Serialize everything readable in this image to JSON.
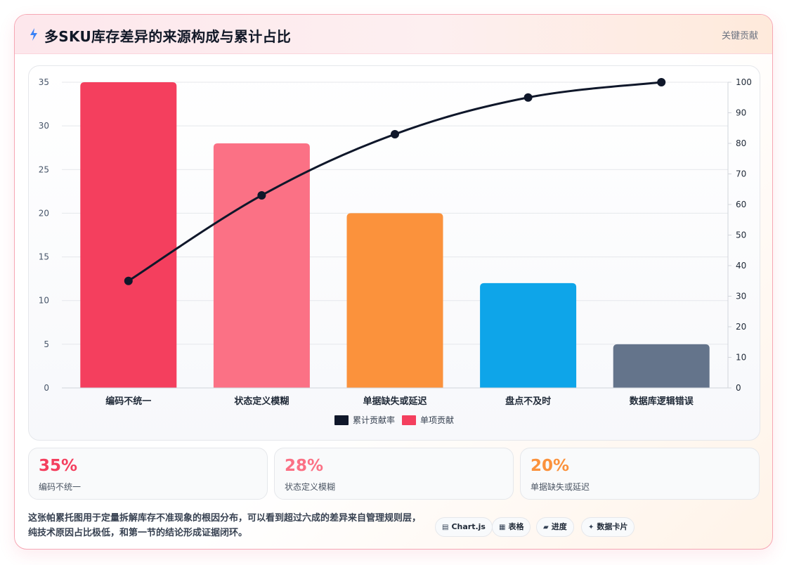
{
  "header": {
    "title": "多SKU库存差异的来源构成与累计占比",
    "tag": "关键贡献"
  },
  "chart_data": {
    "type": "bar",
    "categories": [
      "编码不统一",
      "状态定义模糊",
      "单据缺失或延迟",
      "盘点不及时",
      "数据库逻辑错误"
    ],
    "series": [
      {
        "name": "单项贡献",
        "type": "bar",
        "axis": "left",
        "values": [
          35,
          28,
          20,
          12,
          5
        ],
        "colors": [
          "#f43f5e",
          "#fb7185",
          "#fb923c",
          "#0ea5e9",
          "#64748b"
        ]
      },
      {
        "name": "累计贡献率",
        "type": "line",
        "axis": "right",
        "values": [
          35,
          63,
          83,
          95,
          100
        ],
        "color": "#0f172a"
      }
    ],
    "y_left": {
      "ticks": [
        0,
        5,
        10,
        15,
        20,
        25,
        30,
        35
      ],
      "ylim": [
        0,
        35
      ]
    },
    "y_right": {
      "ticks": [
        0,
        10,
        20,
        30,
        40,
        50,
        60,
        70,
        80,
        90,
        100
      ],
      "ylim": [
        0,
        100
      ]
    },
    "grid": true,
    "legend_position": "bottom"
  },
  "stats": [
    {
      "value": "35%",
      "label": "编码不统一",
      "color": "#f43f5e"
    },
    {
      "value": "28%",
      "label": "状态定义模糊",
      "color": "#fb7185"
    },
    {
      "value": "20%",
      "label": "单据缺失或延迟",
      "color": "#fb923c"
    }
  ],
  "footer": {
    "line1": "这张帕累托图用于定量拆解库存不准现象的根因分布，可以看到超过六成的差异来自管理规则层，",
    "line2": "纯技术原因占比极低，和第一节的结论形成证据闭环。"
  },
  "chips": [
    {
      "label": "Chart.js",
      "icon": "▤"
    },
    {
      "label": "表格",
      "icon": "▦"
    },
    {
      "label": "进度",
      "icon": "▰"
    },
    {
      "label": "数据卡片",
      "icon": "✦"
    }
  ]
}
